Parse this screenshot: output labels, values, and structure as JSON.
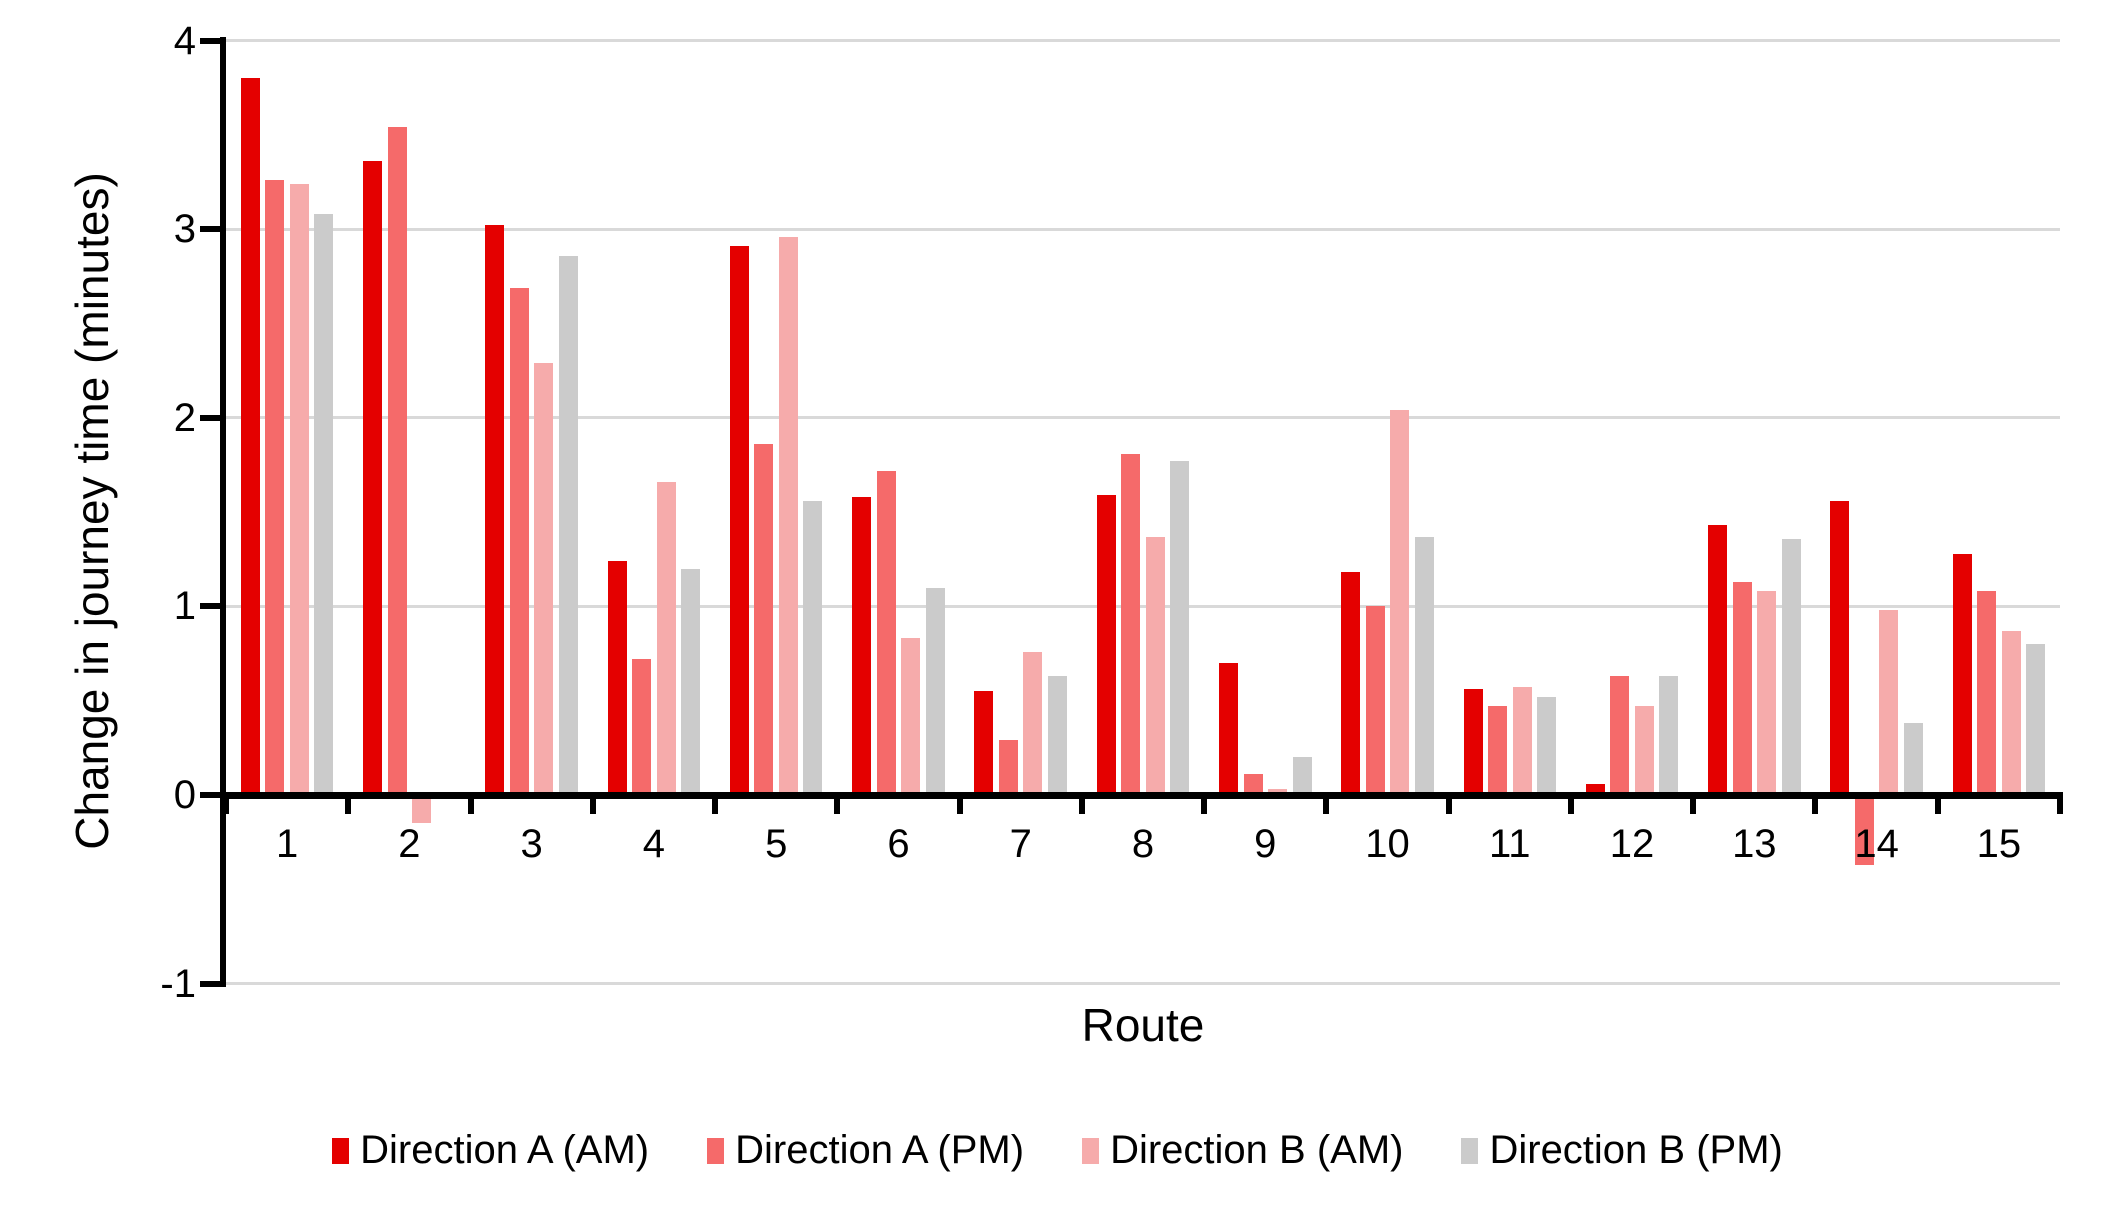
{
  "chart_data": {
    "type": "bar",
    "title": "",
    "xlabel": "Route",
    "ylabel": "Change in journey time (minutes)",
    "ylim": [
      -1,
      4
    ],
    "yticks": [
      4,
      3,
      2,
      1,
      0,
      -1
    ],
    "grid": true,
    "grid_color": "#d9d9d9",
    "axis_color": "#000000",
    "legend_position": "bottom",
    "categories": [
      "1",
      "2",
      "3",
      "4",
      "5",
      "6",
      "7",
      "8",
      "9",
      "10",
      "11",
      "12",
      "13",
      "14",
      "15"
    ],
    "series": [
      {
        "name": "Direction A (AM)",
        "color": "#e40000",
        "values": [
          3.8,
          3.36,
          3.02,
          1.24,
          2.91,
          1.58,
          0.55,
          1.59,
          0.7,
          1.18,
          0.56,
          0.06,
          1.43,
          1.56,
          1.28
        ]
      },
      {
        "name": "Direction A (PM)",
        "color": "#f56a6a",
        "values": [
          3.26,
          3.54,
          2.69,
          0.72,
          1.86,
          1.72,
          0.29,
          1.81,
          0.11,
          1.0,
          0.47,
          0.63,
          1.13,
          -0.37,
          1.08
        ]
      },
      {
        "name": "Direction B (AM)",
        "color": "#f6abab",
        "values": [
          3.24,
          -0.15,
          2.29,
          1.66,
          2.96,
          0.83,
          0.76,
          1.37,
          0.03,
          2.04,
          0.57,
          0.47,
          1.08,
          0.98,
          0.87
        ]
      },
      {
        "name": "Direction B (PM)",
        "color": "#cbcbcb",
        "values": [
          3.08,
          0,
          2.86,
          1.2,
          1.56,
          1.1,
          0.63,
          1.77,
          0.2,
          1.37,
          0.52,
          0.63,
          1.36,
          0.38,
          0.8
        ]
      }
    ]
  }
}
